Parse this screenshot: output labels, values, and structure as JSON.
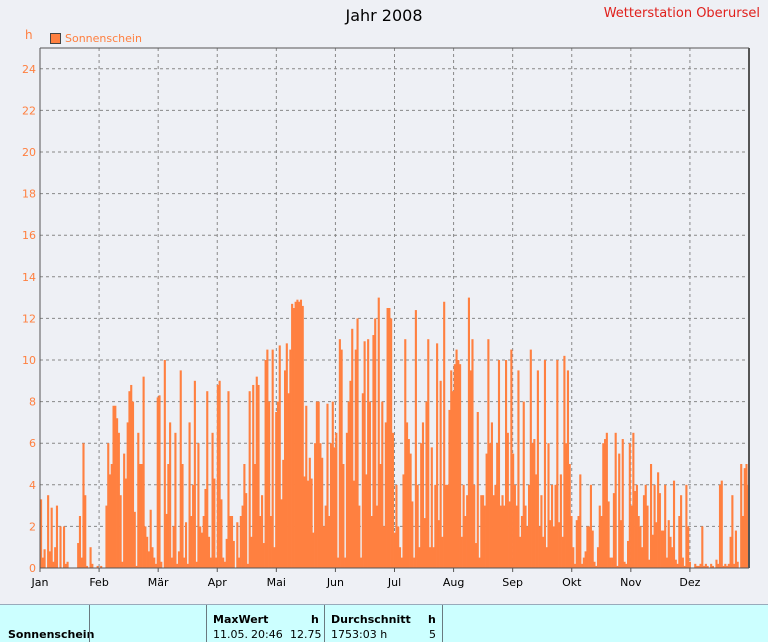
{
  "title": "Jahr 2008",
  "station": "Wetterstation Oberursel",
  "colors": {
    "bar": "#ff8040",
    "axis_text": "#ff7f3f",
    "grid": "#888888",
    "footer_bg": "#ccffff"
  },
  "chart_data": {
    "type": "bar",
    "ylabel": "h",
    "ylim": [
      0,
      25
    ],
    "yticks": [
      0,
      2,
      4,
      6,
      8,
      10,
      12,
      14,
      16,
      18,
      20,
      22,
      24
    ],
    "xticks": [
      "Jan",
      "Feb",
      "Mär",
      "Apr",
      "Mai",
      "Jun",
      "Jul",
      "Aug",
      "Sep",
      "Okt",
      "Nov",
      "Dez"
    ],
    "grid": true,
    "legend_position": "top-left",
    "series": [
      {
        "name": "Sonnenschein",
        "values": [
          3.3,
          0.5,
          0.9,
          0.0,
          3.5,
          0.8,
          2.9,
          0.3,
          1.0,
          3.0,
          0.0,
          2.0,
          0.0,
          2.0,
          0.2,
          0.3,
          0.0,
          0.0,
          0.0,
          0.0,
          0.0,
          1.2,
          2.5,
          0.5,
          6.0,
          3.5,
          0.1,
          0.0,
          1.0,
          0.2,
          0.0,
          0.0,
          0.1,
          0.0,
          0.1,
          0.0,
          0.0,
          3.0,
          6.0,
          4.5,
          5.0,
          7.8,
          7.8,
          7.2,
          6.5,
          3.5,
          0.3,
          5.5,
          4.3,
          7.0,
          8.5,
          8.8,
          8.0,
          2.7,
          0.1,
          6.5,
          5.0,
          5.0,
          9.2,
          2.0,
          1.5,
          0.8,
          2.8,
          1.0,
          0.5,
          0.2,
          8.2,
          8.3,
          0.3,
          0.0,
          10.0,
          2.6,
          5.0,
          7.0,
          0.5,
          2.0,
          6.5,
          0.2,
          0.8,
          9.5,
          5.0,
          0.5,
          2.2,
          0.2,
          7.0,
          2.5,
          4.0,
          9.0,
          0.3,
          6.0,
          2.0,
          1.7,
          2.5,
          3.8,
          8.5,
          1.5,
          0.5,
          6.5,
          4.3,
          0.5,
          8.8,
          9.0,
          3.3,
          0.5,
          0.3,
          1.4,
          8.5,
          2.5,
          2.5,
          1.3,
          0.0,
          2.2,
          0.5,
          2.5,
          3.0,
          5.0,
          3.6,
          0.2,
          8.5,
          1.5,
          8.8,
          5.0,
          9.2,
          8.8,
          2.5,
          3.5,
          1.2,
          10.0,
          10.5,
          8.0,
          2.5,
          10.5,
          1.0,
          7.5,
          8.0,
          10.7,
          3.3,
          5.2,
          9.5,
          10.8,
          8.4,
          10.5,
          12.7,
          12.5,
          12.8,
          12.9,
          12.8,
          12.9,
          12.6,
          4.4,
          7.8,
          4.2,
          5.3,
          4.3,
          1.7,
          6.0,
          8.0,
          8.0,
          6.0,
          5.3,
          2.0,
          3.0,
          7.9,
          2.5,
          6.0,
          8.0,
          5.8,
          6.5,
          0.5,
          11.0,
          10.5,
          5.0,
          0.5,
          6.5,
          8.0,
          9.0,
          11.5,
          4.2,
          10.5,
          12.0,
          3.0,
          0.5,
          8.4,
          10.9,
          4.5,
          11.0,
          8.0,
          2.5,
          11.2,
          12.0,
          3.0,
          13.0,
          5.0,
          8.0,
          2.0,
          7.0,
          12.5,
          12.5,
          12.0,
          6.5,
          1.7,
          4.0,
          2.0,
          1.0,
          0.5,
          4.5,
          11.0,
          7.0,
          6.2,
          5.5,
          3.2,
          0.5,
          12.4,
          4.0,
          1.0,
          6.0,
          7.0,
          2.4,
          8.0,
          11.0,
          1.0,
          5.8,
          1.0,
          4.0,
          10.8,
          2.3,
          9.0,
          1.5,
          12.8,
          4.0,
          4.0,
          7.6,
          9.5,
          8.5,
          9.8,
          10.5,
          10.0,
          9.8,
          1.5,
          4.0,
          2.5,
          3.5,
          13.0,
          9.5,
          11.0,
          4.0,
          1.2,
          7.5,
          0.5,
          3.5,
          3.5,
          3.0,
          5.5,
          11.0,
          6.0,
          7.0,
          3.5,
          4.0,
          6.0,
          10.0,
          3.0,
          3.5,
          3.0,
          10.0,
          6.5,
          3.2,
          10.5,
          5.5,
          4.0,
          3.0,
          9.5,
          1.5,
          2.5,
          8.0,
          3.0,
          2.0,
          4.0,
          10.5,
          6.0,
          6.2,
          4.5,
          9.5,
          2.0,
          3.5,
          1.5,
          10.0,
          1.0,
          6.0,
          2.3,
          4.0,
          2.0,
          4.0,
          10.0,
          2.2,
          4.5,
          1.5,
          10.2,
          6.0,
          9.5,
          5.0,
          2.5,
          1.0,
          0.2,
          2.3,
          2.5,
          4.5,
          0.2,
          0.5,
          0.8,
          2.0,
          2.0,
          4.0,
          1.8,
          0.3,
          0.1,
          1.0,
          3.0,
          2.5,
          6.0,
          6.2,
          6.5,
          3.2,
          0.5,
          0.5,
          3.6,
          6.5,
          0.1,
          5.5,
          2.3,
          6.2,
          0.3,
          0.2,
          1.3,
          6.0,
          3.0,
          6.5,
          3.7,
          4.0,
          2.5,
          2.0,
          1.0,
          3.5,
          4.0,
          3.0,
          0.4,
          5.0,
          1.6,
          4.0,
          2.2,
          4.6,
          3.6,
          1.8,
          1.8,
          4.0,
          0.5,
          2.3,
          1.5,
          1.0,
          4.2,
          0.4,
          0.2,
          2.5,
          3.5,
          0.5,
          0.1,
          4.0,
          2.0,
          0.3,
          0.0,
          0.0,
          0.2,
          0.1,
          0.1,
          0.2,
          2.0,
          0.1,
          0.2,
          0.1,
          0.0,
          0.2,
          0.1,
          0.0,
          0.4,
          0.2,
          4.0,
          4.2,
          0.1,
          0.2,
          0.1,
          0.2,
          1.5,
          3.5,
          0.2,
          1.8,
          0.3,
          0.0,
          5.0,
          2.5,
          4.8,
          5.0,
          4.0
        ]
      }
    ]
  },
  "footer": {
    "row_label": "Sonnenschein",
    "max_header": "MaxWert",
    "max_unit": "h",
    "max_date": "11.05.",
    "max_time": "20:46",
    "max_value": "12.75",
    "avg_header": "Durchschnitt",
    "avg_unit": "h",
    "avg_total": "1753:03 h",
    "avg_value": "5"
  }
}
